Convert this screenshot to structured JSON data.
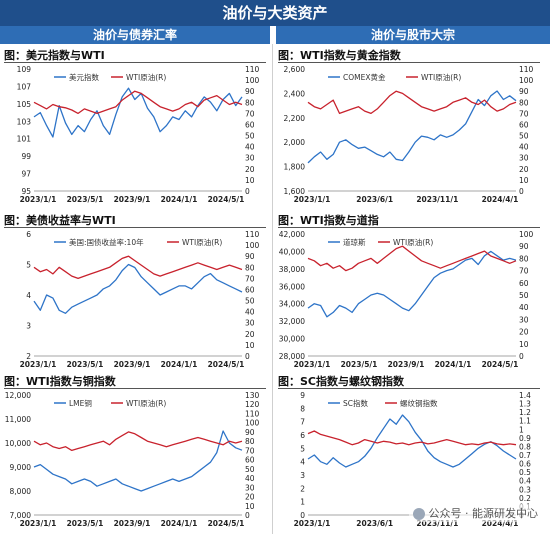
{
  "header": {
    "title": "油价与大类资产",
    "left_section": "油价与债券汇率",
    "right_section": "油价与股市大宗"
  },
  "watermark": "公众号 · 能源研发中心",
  "colors": {
    "blue": "#2e74c8",
    "red": "#c8222d"
  },
  "chart_data": [
    {
      "id": "p1",
      "type": "line",
      "title": "图：美元指数与WTI",
      "left_axis": {
        "min": 95,
        "max": 109,
        "ticks": [
          95,
          97,
          99,
          101,
          103,
          105,
          107,
          109
        ]
      },
      "right_axis": {
        "min": 0,
        "max": 110,
        "ticks": [
          0,
          10,
          20,
          30,
          40,
          50,
          60,
          70,
          80,
          90,
          100,
          110
        ]
      },
      "x_labels": [
        "2023/1/1",
        "2023/5/1",
        "2023/9/1",
        "2024/1/1",
        "2024/5/1"
      ],
      "series": [
        {
          "name": "美元指数",
          "axis": "left",
          "color": "#2e74c8",
          "values": [
            103.5,
            104.0,
            102.5,
            101.2,
            104.8,
            102.8,
            101.5,
            102.5,
            101.8,
            103.2,
            104.2,
            102.5,
            101.5,
            103.8,
            105.8,
            106.8,
            105.5,
            106.2,
            104.5,
            103.5,
            101.8,
            102.5,
            103.5,
            103.2,
            104.2,
            103.5,
            104.8,
            105.8,
            105.2,
            104.2,
            105.5,
            106.2,
            104.8,
            105.8
          ]
        },
        {
          "name": "WTI原油(R)",
          "axis": "right",
          "color": "#c8222d",
          "values": [
            80,
            77,
            74,
            78,
            76,
            75,
            73,
            70,
            74,
            72,
            70,
            72,
            74,
            76,
            82,
            86,
            90,
            88,
            84,
            80,
            76,
            74,
            72,
            74,
            78,
            80,
            76,
            82,
            84,
            86,
            82,
            78,
            80,
            78
          ]
        }
      ]
    },
    {
      "id": "p2",
      "type": "line",
      "title": "图：WTI指数与黄金指数",
      "left_axis": {
        "min": 1600,
        "max": 2600,
        "ticks": [
          1600,
          1800,
          2000,
          2200,
          2400,
          2600
        ]
      },
      "right_axis": {
        "min": 0,
        "max": 110,
        "ticks": [
          0,
          10,
          20,
          30,
          40,
          50,
          60,
          70,
          80,
          90,
          100,
          110
        ]
      },
      "x_labels": [
        "2023/1/1",
        "2023/6/1",
        "2023/11/1",
        "2024/4/1"
      ],
      "series": [
        {
          "name": "COMEX黄金",
          "axis": "left",
          "color": "#2e74c8",
          "values": [
            1830,
            1880,
            1920,
            1860,
            1900,
            2000,
            2020,
            1980,
            1950,
            1960,
            1930,
            1900,
            1880,
            1920,
            1860,
            1850,
            1920,
            2000,
            2050,
            2040,
            2020,
            2060,
            2040,
            2060,
            2100,
            2150,
            2250,
            2350,
            2300,
            2380,
            2420,
            2350,
            2380,
            2340
          ]
        },
        {
          "name": "WTI原油(R)",
          "axis": "right",
          "color": "#c8222d",
          "values": [
            80,
            76,
            74,
            78,
            82,
            70,
            72,
            74,
            76,
            72,
            70,
            74,
            80,
            86,
            90,
            88,
            84,
            80,
            76,
            74,
            72,
            74,
            76,
            80,
            82,
            84,
            80,
            78,
            82,
            76,
            72,
            74,
            78,
            80
          ]
        }
      ]
    },
    {
      "id": "p3",
      "type": "line",
      "title": "图：美债收益率与WTI",
      "left_axis": {
        "min": 2,
        "max": 6,
        "ticks": [
          2,
          3,
          4,
          5,
          6
        ]
      },
      "right_axis": {
        "min": 0,
        "max": 110,
        "ticks": [
          0,
          10,
          20,
          30,
          40,
          50,
          60,
          70,
          80,
          90,
          100,
          110
        ]
      },
      "x_labels": [
        "2023/1/1",
        "2023/5/1",
        "2023/9/1",
        "2024/1/1",
        "2024/5/1"
      ],
      "series": [
        {
          "name": "美国:国债收益率:10年",
          "axis": "left",
          "color": "#2e74c8",
          "values": [
            3.8,
            3.5,
            4.0,
            3.9,
            3.5,
            3.4,
            3.6,
            3.7,
            3.8,
            3.9,
            4.0,
            4.2,
            4.3,
            4.5,
            4.8,
            5.0,
            4.9,
            4.6,
            4.4,
            4.2,
            4.0,
            4.1,
            4.2,
            4.3,
            4.3,
            4.2,
            4.4,
            4.6,
            4.7,
            4.5,
            4.4,
            4.3,
            4.2,
            4.1
          ]
        },
        {
          "name": "WTI原油(R)",
          "axis": "right",
          "color": "#c8222d",
          "values": [
            80,
            76,
            78,
            74,
            80,
            76,
            72,
            70,
            72,
            74,
            76,
            78,
            80,
            84,
            88,
            90,
            86,
            82,
            78,
            74,
            72,
            74,
            76,
            78,
            80,
            82,
            84,
            82,
            80,
            78,
            80,
            82,
            80,
            78
          ]
        }
      ]
    },
    {
      "id": "p4",
      "type": "line",
      "title": "图：WTI指数与道指",
      "left_axis": {
        "min": 28000,
        "max": 42000,
        "ticks": [
          28000,
          30000,
          32000,
          34000,
          36000,
          38000,
          40000,
          42000
        ]
      },
      "right_axis": {
        "min": 0,
        "max": 100,
        "ticks": [
          0,
          10,
          20,
          30,
          40,
          50,
          60,
          70,
          80,
          90,
          100
        ]
      },
      "x_labels": [
        "2023/1/1",
        "2023/5/1",
        "2023/9/1",
        "2024/1/1",
        "2024/5/1"
      ],
      "series": [
        {
          "name": "道琼斯",
          "axis": "left",
          "color": "#2e74c8",
          "values": [
            33500,
            34000,
            33800,
            32500,
            33000,
            33800,
            33500,
            33000,
            34000,
            34500,
            35000,
            35200,
            35000,
            34500,
            34000,
            33500,
            33200,
            34000,
            35000,
            36000,
            37000,
            37500,
            37800,
            38000,
            38500,
            39000,
            39200,
            38500,
            39500,
            40000,
            39500,
            39000,
            39200,
            39000
          ]
        },
        {
          "name": "WTI原油(R)",
          "axis": "right",
          "color": "#c8222d",
          "values": [
            80,
            78,
            74,
            76,
            72,
            74,
            70,
            72,
            76,
            78,
            80,
            76,
            80,
            84,
            88,
            90,
            86,
            82,
            78,
            76,
            74,
            72,
            74,
            76,
            78,
            80,
            82,
            84,
            86,
            82,
            80,
            78,
            76,
            78
          ]
        }
      ]
    },
    {
      "id": "p5",
      "type": "line",
      "title": "图：WTI指数与铜指数",
      "left_axis": {
        "min": 7000,
        "max": 12000,
        "ticks": [
          7000,
          8000,
          9000,
          10000,
          11000,
          12000
        ]
      },
      "right_axis": {
        "min": 0,
        "max": 130,
        "ticks": [
          0,
          10,
          20,
          30,
          40,
          50,
          60,
          70,
          80,
          90,
          100,
          110,
          120,
          130
        ]
      },
      "x_labels": [
        "2023/1/1",
        "2023/5/1",
        "2023/9/1",
        "2024/1/1",
        "2024/5/1"
      ],
      "series": [
        {
          "name": "LME铜",
          "axis": "left",
          "color": "#2e74c8",
          "values": [
            9000,
            9100,
            8900,
            8700,
            8600,
            8500,
            8300,
            8400,
            8500,
            8400,
            8200,
            8300,
            8400,
            8500,
            8300,
            8200,
            8100,
            8000,
            8100,
            8200,
            8300,
            8400,
            8500,
            8400,
            8500,
            8600,
            8800,
            9000,
            9200,
            9600,
            10500,
            10000,
            9800,
            9700
          ]
        },
        {
          "name": "WTI原油(R)",
          "axis": "right",
          "color": "#c8222d",
          "values": [
            80,
            76,
            78,
            74,
            72,
            74,
            70,
            72,
            74,
            76,
            78,
            80,
            76,
            82,
            86,
            90,
            88,
            84,
            80,
            78,
            76,
            74,
            76,
            78,
            80,
            82,
            84,
            82,
            80,
            78,
            76,
            80,
            78,
            80
          ]
        }
      ]
    },
    {
      "id": "p6",
      "type": "line",
      "title": "图：SC指数与螺纹钢指数",
      "left_axis": {
        "min": 0,
        "max": 9,
        "ticks": [
          0,
          1,
          2,
          3,
          4,
          5,
          6,
          7,
          8,
          9
        ]
      },
      "right_axis": {
        "min": 0,
        "max": 1.4,
        "ticks": [
          0,
          0.1,
          0.2,
          0.3,
          0.4,
          0.5,
          0.6,
          0.7,
          0.8,
          0.9,
          1.0,
          1.1,
          1.2,
          1.3,
          1.4
        ]
      },
      "x_labels": [
        "2023/1/1",
        "2023/6/1",
        "2023/11/1",
        "2024/4/1"
      ],
      "series": [
        {
          "name": "SC指数",
          "axis": "left",
          "color": "#2e74c8",
          "values": [
            4.2,
            4.5,
            4.0,
            3.8,
            4.3,
            3.9,
            3.6,
            3.8,
            4.0,
            4.4,
            5.0,
            5.8,
            6.5,
            7.2,
            6.8,
            7.5,
            7.0,
            6.2,
            5.6,
            4.8,
            4.3,
            4.0,
            3.8,
            3.6,
            3.8,
            4.2,
            4.6,
            5.0,
            5.3,
            5.5,
            5.2,
            4.8,
            4.5,
            4.2
          ]
        },
        {
          "name": "螺纹钢指数",
          "axis": "right",
          "color": "#c8222d",
          "values": [
            0.95,
            0.98,
            0.94,
            0.92,
            0.9,
            0.88,
            0.85,
            0.82,
            0.84,
            0.88,
            0.86,
            0.84,
            0.86,
            0.85,
            0.83,
            0.84,
            0.82,
            0.84,
            0.85,
            0.83,
            0.84,
            0.86,
            0.88,
            0.86,
            0.84,
            0.82,
            0.83,
            0.82,
            0.84,
            0.85,
            0.83,
            0.82,
            0.83,
            0.82
          ]
        }
      ]
    }
  ]
}
